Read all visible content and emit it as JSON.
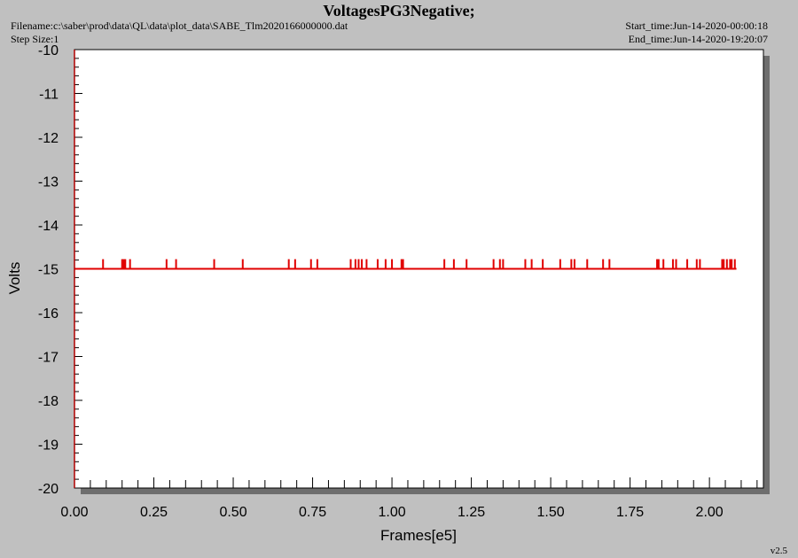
{
  "header": {
    "title": "VoltagesPG3Negative;",
    "filename": "Filename:c:\\saber\\prod\\data\\QL\\data\\plot_data\\SABE_Tlm2020166000000.dat",
    "step_size": "Step Size:1",
    "start_time": "Start_time:Jun-14-2020-00:00:18",
    "end_time": "End_time:Jun-14-2020-19:20:07",
    "version": "v2.5"
  },
  "colors": {
    "background": "#c0c0c0",
    "plot_area": "#ffffff",
    "series": "#e00000",
    "shadow": "#6e6e6e"
  },
  "chart_data": {
    "type": "line",
    "title": "VoltagesPG3Negative;",
    "xlabel": "Frames[e5]",
    "ylabel": "Volts",
    "xlim": [
      0.0,
      2.17
    ],
    "ylim": [
      -20,
      -10
    ],
    "x_tick_labels": [
      "0.00",
      "0.25",
      "0.50",
      "0.75",
      "1.00",
      "1.25",
      "1.50",
      "1.75",
      "2.00"
    ],
    "y_tick_labels": [
      "-10",
      "-11",
      "-12",
      "-13",
      "-14",
      "-15",
      "-16",
      "-17",
      "-18",
      "-19",
      "-20"
    ],
    "grid": false,
    "series": [
      {
        "baseline": -15.0,
        "x_range": [
          0.0,
          2.085
        ],
        "spike_value": -14.78,
        "spike_x": [
          0.09,
          0.15,
          0.155,
          0.16,
          0.175,
          0.29,
          0.32,
          0.44,
          0.53,
          0.675,
          0.695,
          0.745,
          0.765,
          0.87,
          0.885,
          0.895,
          0.905,
          0.92,
          0.955,
          0.98,
          1.0,
          1.03,
          1.035,
          1.165,
          1.195,
          1.235,
          1.32,
          1.34,
          1.35,
          1.42,
          1.44,
          1.475,
          1.53,
          1.565,
          1.575,
          1.615,
          1.665,
          1.685,
          1.835,
          1.84,
          1.855,
          1.885,
          1.895,
          1.93,
          1.96,
          1.97,
          2.04,
          2.045,
          2.055,
          2.065,
          2.07,
          2.08
        ]
      }
    ]
  }
}
